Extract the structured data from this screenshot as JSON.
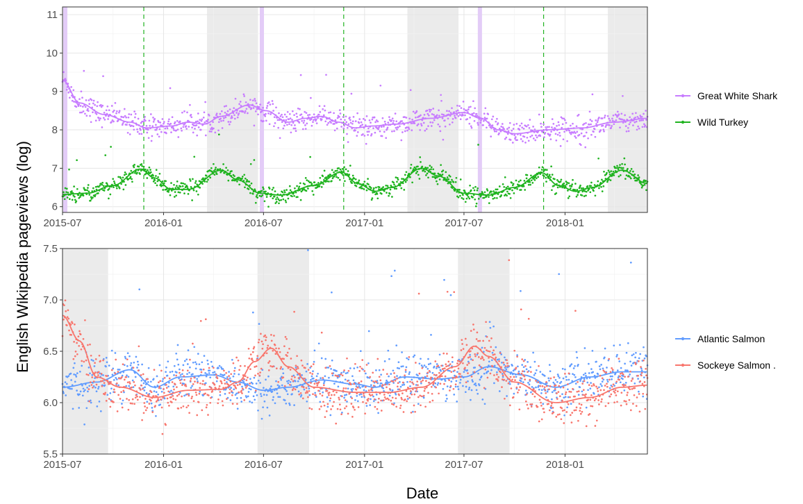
{
  "figure": {
    "ylabel": "English Wikipedia pageviews (log)",
    "xlabel": "Date"
  },
  "colors": {
    "great_white_shark": "#C77CFF",
    "wild_turkey": "#1FB31F",
    "atlantic_salmon": "#619CFF",
    "sockeye_salmon": "#F8766D",
    "season_shading": "#EBEBEB",
    "highlight_band": "#E3CCF7",
    "panel_background": "#FFFFFF",
    "grid": "#EBEBEB"
  },
  "chart_data": [
    {
      "type": "scatter",
      "panel": "top",
      "x_axis": {
        "type": "date",
        "ticks": [
          "2015-07",
          "2016-01",
          "2016-07",
          "2017-01",
          "2017-07",
          "2018-01"
        ],
        "range": [
          "2015-07-01",
          "2018-05-31"
        ]
      },
      "y_axis": {
        "ticks": [
          6,
          7,
          8,
          9,
          10,
          11
        ],
        "ylim": [
          5.85,
          11.2
        ]
      },
      "grid": true,
      "legend_position": "right",
      "shaded_periods": [
        {
          "start": "2016-03-20",
          "end": "2016-06-21"
        },
        {
          "start": "2017-03-20",
          "end": "2017-06-21"
        },
        {
          "start": "2018-03-20",
          "end": "2018-05-31"
        }
      ],
      "highlight_dates": [
        "2015-07-06",
        "2016-06-28",
        "2017-07-30"
      ],
      "event_lines": [
        "2015-11-26",
        "2016-11-24",
        "2017-11-23"
      ],
      "series": [
        {
          "name": "Great White Shark",
          "color_key": "great_white_shark",
          "trend": [
            [
              "2015-07-01",
              9.3
            ],
            [
              "2015-08-01",
              8.7
            ],
            [
              "2015-09-15",
              8.4
            ],
            [
              "2015-11-01",
              8.2
            ],
            [
              "2015-12-01",
              8.05
            ],
            [
              "2016-01-15",
              8.1
            ],
            [
              "2016-02-15",
              8.2
            ],
            [
              "2016-03-15",
              8.15
            ],
            [
              "2016-04-15",
              8.35
            ],
            [
              "2016-06-05",
              8.65
            ],
            [
              "2016-07-05",
              8.5
            ],
            [
              "2016-08-15",
              8.2
            ],
            [
              "2016-09-15",
              8.3
            ],
            [
              "2016-10-15",
              8.35
            ],
            [
              "2016-11-15",
              8.2
            ],
            [
              "2016-12-15",
              8.05
            ],
            [
              "2017-01-15",
              8.1
            ],
            [
              "2017-03-01",
              8.15
            ],
            [
              "2017-05-01",
              8.3
            ],
            [
              "2017-07-01",
              8.45
            ],
            [
              "2017-08-01",
              8.3
            ],
            [
              "2017-09-01",
              8.0
            ],
            [
              "2017-10-01",
              7.9
            ],
            [
              "2017-12-01",
              8.0
            ],
            [
              "2018-02-01",
              8.05
            ],
            [
              "2018-04-01",
              8.2
            ],
            [
              "2018-05-31",
              8.3
            ]
          ],
          "noise": 0.15
        },
        {
          "name": "Wild Turkey",
          "color_key": "wild_turkey",
          "trend": [
            [
              "2015-07-01",
              6.32
            ],
            [
              "2015-08-15",
              6.35
            ],
            [
              "2015-10-01",
              6.55
            ],
            [
              "2015-11-20",
              6.98
            ],
            [
              "2015-12-15",
              6.75
            ],
            [
              "2016-01-15",
              6.45
            ],
            [
              "2016-02-15",
              6.45
            ],
            [
              "2016-04-15",
              6.95
            ],
            [
              "2016-05-15",
              6.7
            ],
            [
              "2016-06-25",
              6.35
            ],
            [
              "2016-08-01",
              6.3
            ],
            [
              "2016-10-01",
              6.55
            ],
            [
              "2016-11-20",
              6.9
            ],
            [
              "2016-12-20",
              6.6
            ],
            [
              "2017-01-20",
              6.4
            ],
            [
              "2017-02-20",
              6.5
            ],
            [
              "2017-04-15",
              7.0
            ],
            [
              "2017-05-15",
              6.8
            ],
            [
              "2017-07-01",
              6.35
            ],
            [
              "2017-08-15",
              6.3
            ],
            [
              "2017-10-01",
              6.5
            ],
            [
              "2017-11-20",
              6.88
            ],
            [
              "2017-12-20",
              6.55
            ],
            [
              "2018-01-20",
              6.4
            ],
            [
              "2018-02-20",
              6.5
            ],
            [
              "2018-04-15",
              6.95
            ],
            [
              "2018-05-31",
              6.6
            ]
          ],
          "noise": 0.1
        }
      ]
    },
    {
      "type": "scatter",
      "panel": "bottom",
      "x_axis": {
        "type": "date",
        "ticks": [
          "2015-07",
          "2016-01",
          "2016-07",
          "2017-01",
          "2017-07",
          "2018-01"
        ],
        "range": [
          "2015-07-01",
          "2018-05-31"
        ]
      },
      "y_axis": {
        "ticks": [
          5.5,
          6.0,
          6.5,
          7.0,
          7.5
        ],
        "ylim": [
          5.5,
          7.5
        ]
      },
      "grid": true,
      "legend_position": "right",
      "shaded_periods": [
        {
          "start": "2015-07-01",
          "end": "2015-09-22"
        },
        {
          "start": "2016-06-20",
          "end": "2016-09-22"
        },
        {
          "start": "2017-06-20",
          "end": "2017-09-22"
        }
      ],
      "series": [
        {
          "name": "Atlantic Salmon",
          "color_key": "atlantic_salmon",
          "trend": [
            [
              "2015-07-01",
              6.15
            ],
            [
              "2015-09-01",
              6.2
            ],
            [
              "2015-11-01",
              6.32
            ],
            [
              "2015-12-15",
              6.15
            ],
            [
              "2016-02-01",
              6.25
            ],
            [
              "2016-04-01",
              6.27
            ],
            [
              "2016-05-15",
              6.2
            ],
            [
              "2016-07-01",
              6.12
            ],
            [
              "2016-08-15",
              6.15
            ],
            [
              "2016-10-15",
              6.22
            ],
            [
              "2016-12-15",
              6.18
            ],
            [
              "2017-01-20",
              6.15
            ],
            [
              "2017-03-15",
              6.25
            ],
            [
              "2017-05-15",
              6.23
            ],
            [
              "2017-07-01",
              6.25
            ],
            [
              "2017-08-15",
              6.35
            ],
            [
              "2017-10-15",
              6.27
            ],
            [
              "2017-12-15",
              6.15
            ],
            [
              "2018-02-15",
              6.25
            ],
            [
              "2018-04-15",
              6.3
            ],
            [
              "2018-05-31",
              6.3
            ]
          ],
          "noise": 0.12
        },
        {
          "name": "Sockeye Salmon .",
          "color_key": "sockeye_salmon",
          "trend": [
            [
              "2015-07-01",
              6.85
            ],
            [
              "2015-08-01",
              6.6
            ],
            [
              "2015-09-01",
              6.25
            ],
            [
              "2015-10-15",
              6.15
            ],
            [
              "2015-12-15",
              6.05
            ],
            [
              "2016-02-15",
              6.12
            ],
            [
              "2016-04-15",
              6.13
            ],
            [
              "2016-05-15",
              6.2
            ],
            [
              "2016-06-15",
              6.4
            ],
            [
              "2016-07-15",
              6.53
            ],
            [
              "2016-08-15",
              6.35
            ],
            [
              "2016-10-01",
              6.15
            ],
            [
              "2016-12-15",
              6.1
            ],
            [
              "2017-02-15",
              6.1
            ],
            [
              "2017-04-15",
              6.15
            ],
            [
              "2017-06-15",
              6.35
            ],
            [
              "2017-07-20",
              6.55
            ],
            [
              "2017-08-15",
              6.45
            ],
            [
              "2017-10-01",
              6.2
            ],
            [
              "2017-12-15",
              6.0
            ],
            [
              "2018-02-15",
              6.05
            ],
            [
              "2018-04-15",
              6.15
            ],
            [
              "2018-05-31",
              6.17
            ]
          ],
          "noise": 0.12
        }
      ]
    }
  ]
}
